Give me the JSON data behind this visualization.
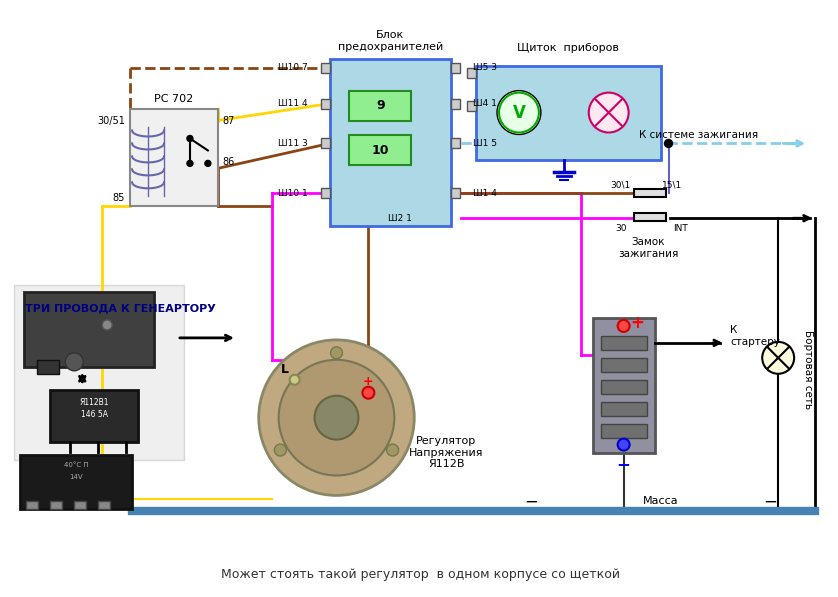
{
  "bg_color": "#ffffff",
  "bottom_text": "Может стоять такой регулятор  в одном корпусе со щеткой",
  "labels": {
    "blok_title": "Блок\nпредохранителей",
    "shitok_title": "Щиток  приборов",
    "rc702": "РС 702",
    "tri_provoda": "ТРИ ПРОВОДА К ГЕНЕАРТОРУ",
    "regulator": "Регулятор\nНапряжения\nЯ112В",
    "k_starteru": "К\nстартеру",
    "bortovaya": "Бортовая сеть",
    "massa": "Масса",
    "k_sisteme": "К системе зажигания",
    "zamok": "Замок\nзажигания",
    "L_label": "L",
    "pin_30_51": "30/51",
    "pin_85": "85",
    "pin_87": "87",
    "pin_86": "86",
    "pin_sh107": "Ш10 7",
    "pin_sh114": "Ш11 4",
    "pin_sh113": "Ш11 3",
    "pin_sh101": "Ш10 1",
    "pin_sh53": "Ш5 3",
    "pin_sh41": "Ш4 1",
    "pin_sh15": "Ш1 5",
    "pin_sh14": "Ш1 4",
    "pin_sh21": "Ш2 1",
    "pin_30_1": "30\\1",
    "pin_15_1": "15\\1",
    "pin_30": "30",
    "pin_int": "INT",
    "fuse9": "9",
    "fuse10": "10",
    "chip_label1": "Я112В1",
    "chip_label2": "146 5А"
  },
  "colors": {
    "brown": "#8B4513",
    "yellow": "#FFD700",
    "magenta": "#FF00FF",
    "blue_light": "#87CEEB",
    "blue_dark": "#0000CD",
    "black": "#000000",
    "gray": "#808080",
    "box_fill": "#ADD8E6",
    "box_border": "#4169E1",
    "fuse_fill": "#90EE90",
    "dash_brown": "#8B4513",
    "red": "#FF0000",
    "green": "#00AA00",
    "ground_blue": "#4682B4"
  }
}
